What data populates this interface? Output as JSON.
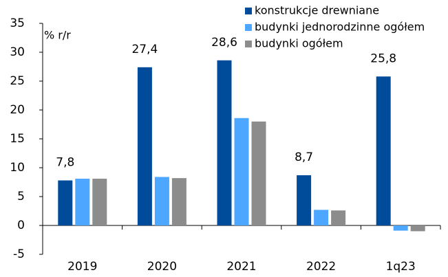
{
  "chart_data": {
    "type": "bar",
    "y_label": "% r/r",
    "categories": [
      "2019",
      "2020",
      "2021",
      "2022",
      "1q23"
    ],
    "series": [
      {
        "name": "konstrukcje drewniane",
        "color": "#004c9b",
        "values": [
          7.8,
          27.4,
          28.6,
          8.7,
          25.8
        ],
        "value_labels": [
          "7,8",
          "27,4",
          "28,6",
          "8,7",
          "25,8"
        ]
      },
      {
        "name": "budynki jednorodzinne ogółem",
        "color": "#4da6ff",
        "values": [
          8.1,
          8.4,
          18.6,
          2.7,
          -0.9
        ]
      },
      {
        "name": "budynki  ogółem",
        "color": "#8c8c8c",
        "values": [
          8.1,
          8.2,
          18.0,
          2.6,
          -1.0
        ]
      }
    ],
    "ylim": [
      -5,
      35
    ],
    "yticks": [
      -5,
      0,
      5,
      10,
      15,
      20,
      25,
      30,
      35
    ],
    "legend": "top-right"
  }
}
